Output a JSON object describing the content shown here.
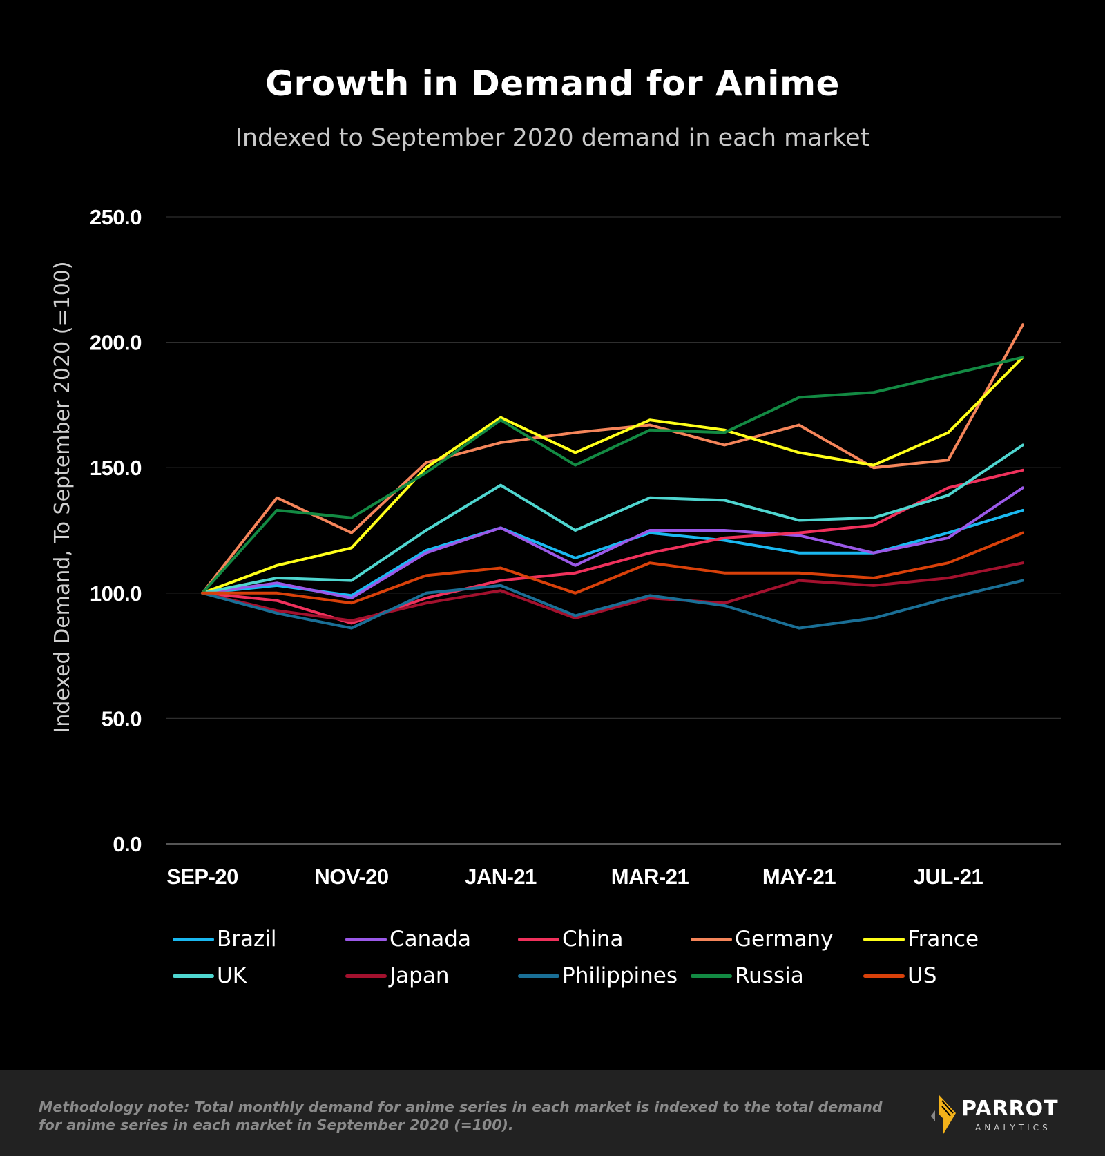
{
  "title": "Growth in Demand for Anime",
  "subtitle": "Indexed to September 2020 demand in each market",
  "footer": {
    "note": "Methodology note: Total monthly demand for anime series in each market is indexed to the total demand for anime series in each market in September 2020 (=100).",
    "logo_text": "PARROT",
    "logo_subtext": "ANALYTICS"
  },
  "chart_data": {
    "type": "line",
    "ylabel": "Indexed Demand, To September 2020 (=100)",
    "ylim": [
      0,
      250
    ],
    "yticks": [
      0,
      50,
      100,
      150,
      200,
      250
    ],
    "ytick_labels": [
      "0.0",
      "50.0",
      "100.0",
      "150.0",
      "200.0",
      "250.0"
    ],
    "x": [
      "Sep-20",
      "Oct-20",
      "Nov-20",
      "Dec-20",
      "Jan-21",
      "Feb-21",
      "Mar-21",
      "Apr-21",
      "May-21",
      "Jun-21",
      "Jul-21",
      "Aug-21"
    ],
    "xtick_labels": [
      "SEP-20",
      "",
      "NOV-20",
      "",
      "JAN-21",
      "",
      "MAR-21",
      "",
      "MAY-21",
      "",
      "JUL-21",
      ""
    ],
    "grid": true,
    "legend_position": "bottom",
    "series": [
      {
        "name": "Brazil",
        "color": "#1ab8f0",
        "values": [
          100,
          103,
          99,
          117,
          126,
          114,
          124,
          121,
          116,
          116,
          124,
          133
        ]
      },
      {
        "name": "Canada",
        "color": "#9b59e8",
        "values": [
          100,
          104,
          98,
          116,
          126,
          111,
          125,
          125,
          123,
          116,
          122,
          142
        ]
      },
      {
        "name": "China",
        "color": "#f0315c",
        "values": [
          100,
          97,
          88,
          98,
          105,
          108,
          116,
          122,
          124,
          127,
          142,
          149
        ]
      },
      {
        "name": "Germany",
        "color": "#f5855a",
        "values": [
          100,
          138,
          124,
          152,
          160,
          164,
          167,
          159,
          167,
          150,
          153,
          207
        ]
      },
      {
        "name": "France",
        "color": "#ffff19",
        "values": [
          100,
          111,
          118,
          150,
          170,
          156,
          169,
          165,
          156,
          151,
          164,
          194
        ]
      },
      {
        "name": "UK",
        "color": "#4fd6d0",
        "values": [
          100,
          106,
          105,
          125,
          143,
          125,
          138,
          137,
          129,
          130,
          139,
          159
        ]
      },
      {
        "name": "Japan",
        "color": "#a3112e",
        "values": [
          100,
          93,
          89,
          96,
          101,
          90,
          98,
          96,
          105,
          103,
          106,
          112
        ]
      },
      {
        "name": "Philippines",
        "color": "#1a6f96",
        "values": [
          100,
          92,
          86,
          100,
          103,
          91,
          99,
          95,
          86,
          90,
          98,
          105
        ]
      },
      {
        "name": "Russia",
        "color": "#138a43",
        "values": [
          100,
          133,
          130,
          148,
          169,
          151,
          165,
          164,
          178,
          180,
          187,
          194
        ]
      },
      {
        "name": "US",
        "color": "#d9410a",
        "values": [
          100,
          100,
          96,
          107,
          110,
          100,
          112,
          108,
          108,
          106,
          112,
          124
        ]
      }
    ]
  }
}
